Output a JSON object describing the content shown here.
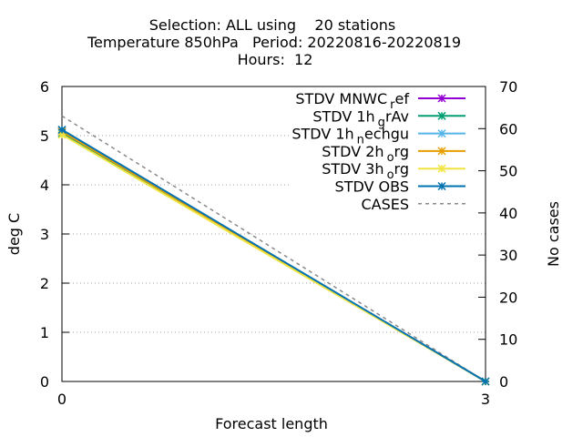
{
  "chart_data": {
    "type": "line",
    "title_lines": [
      "Selection: ALL using    20 stations",
      "Temperature 850hPa   Period: 20220816-20220819",
      "Hours:  12"
    ],
    "xlabel": "Forecast length",
    "ylabel": "deg C",
    "y2label": "No cases",
    "x": [
      0,
      3
    ],
    "xlim": [
      0,
      3
    ],
    "ylim": [
      0,
      6
    ],
    "y2lim": [
      0,
      70
    ],
    "xticks": [
      "0",
      "3"
    ],
    "yticks": [
      "0",
      "1",
      "2",
      "3",
      "4",
      "5",
      "6"
    ],
    "y2ticks": [
      "0",
      "10",
      "20",
      "30",
      "40",
      "50",
      "60",
      "70"
    ],
    "grid": true,
    "legend_position": "top-right",
    "series": [
      {
        "name": "STDV MNWC_ref",
        "main": "STDV MNWC",
        "sub": "r",
        "tail": "ef",
        "axis": "y1",
        "color": "#9400d3",
        "values": [
          5.1,
          0.0
        ]
      },
      {
        "name": "STDV 1h_grAv",
        "main": "STDV 1h",
        "sub": "g",
        "tail": "rAv",
        "axis": "y1",
        "color": "#009e73",
        "values": [
          5.05,
          0.0
        ]
      },
      {
        "name": "STDV 1h_nechgu",
        "main": "STDV 1h",
        "sub": "n",
        "tail": "echgu",
        "axis": "y1",
        "color": "#56b4e9",
        "values": [
          5.1,
          0.0
        ]
      },
      {
        "name": "STDV 2h_org",
        "main": "STDV 2h",
        "sub": "o",
        "tail": "rg",
        "axis": "y1",
        "color": "#e69f00",
        "values": [
          5.08,
          0.0
        ]
      },
      {
        "name": "STDV 3h_org",
        "main": "STDV 3h",
        "sub": "o",
        "tail": "rg",
        "axis": "y1",
        "color": "#f0e442",
        "values": [
          5.02,
          0.0
        ]
      },
      {
        "name": "STDV OBS",
        "main": "STDV OBS",
        "sub": "",
        "tail": "",
        "axis": "y1",
        "color": "#0072b2",
        "values": [
          5.12,
          0.0
        ]
      },
      {
        "name": "CASES",
        "main": "CASES",
        "sub": "",
        "tail": "",
        "axis": "y2",
        "color": "#888888",
        "dashed": true,
        "values": [
          63,
          0
        ]
      }
    ]
  }
}
